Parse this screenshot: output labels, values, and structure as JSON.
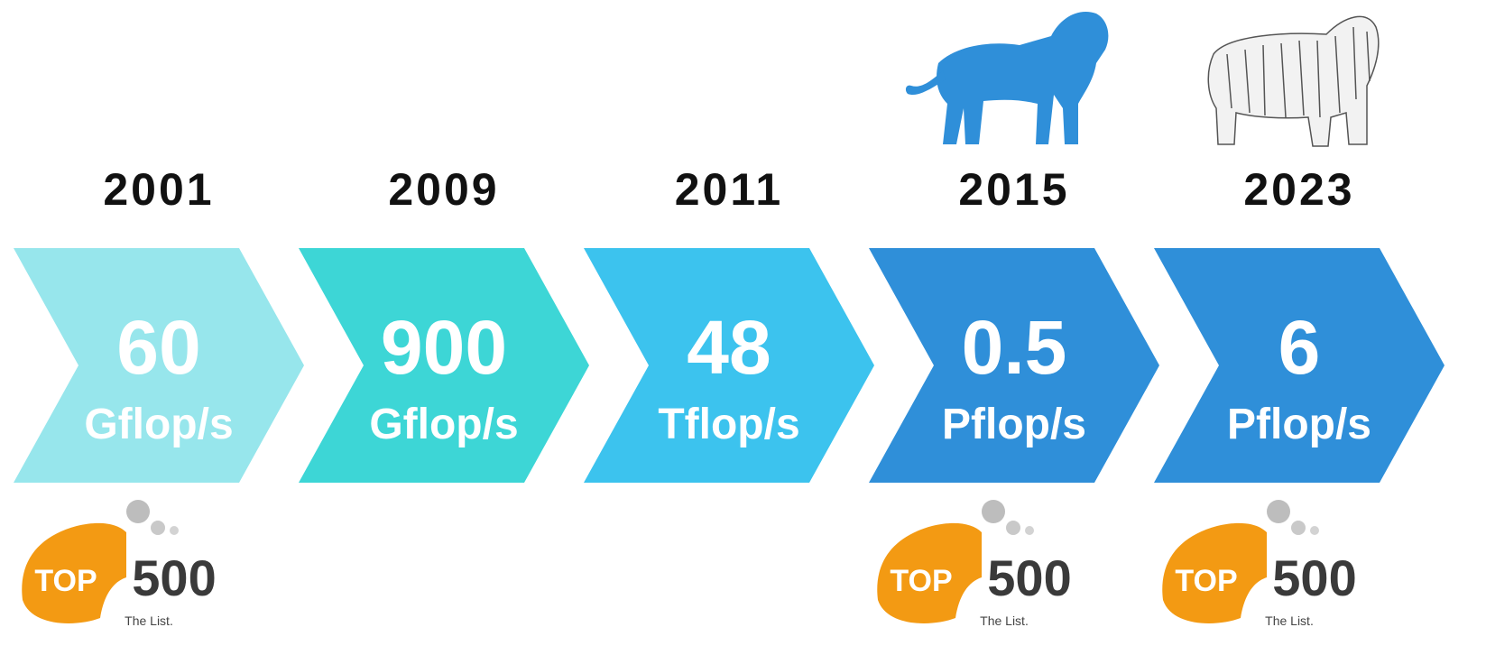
{
  "timeline": [
    {
      "year": "2001",
      "value": "60",
      "unit": "Gflop/s",
      "logo": {
        "top": "TOP",
        "number": "500",
        "tagline": "The List."
      }
    },
    {
      "year": "2009",
      "value": "900",
      "unit": "Gflop/s"
    },
    {
      "year": "2011",
      "value": "48",
      "unit": "Tflop/s"
    },
    {
      "year": "2015",
      "value": "0.5",
      "unit": "Pflop/s",
      "logo": {
        "top": "TOP",
        "number": "500",
        "tagline": "The List."
      }
    },
    {
      "year": "2023",
      "value": "6",
      "unit": "Pflop/s",
      "logo": {
        "top": "TOP",
        "number": "500",
        "tagline": "The List."
      }
    }
  ]
}
